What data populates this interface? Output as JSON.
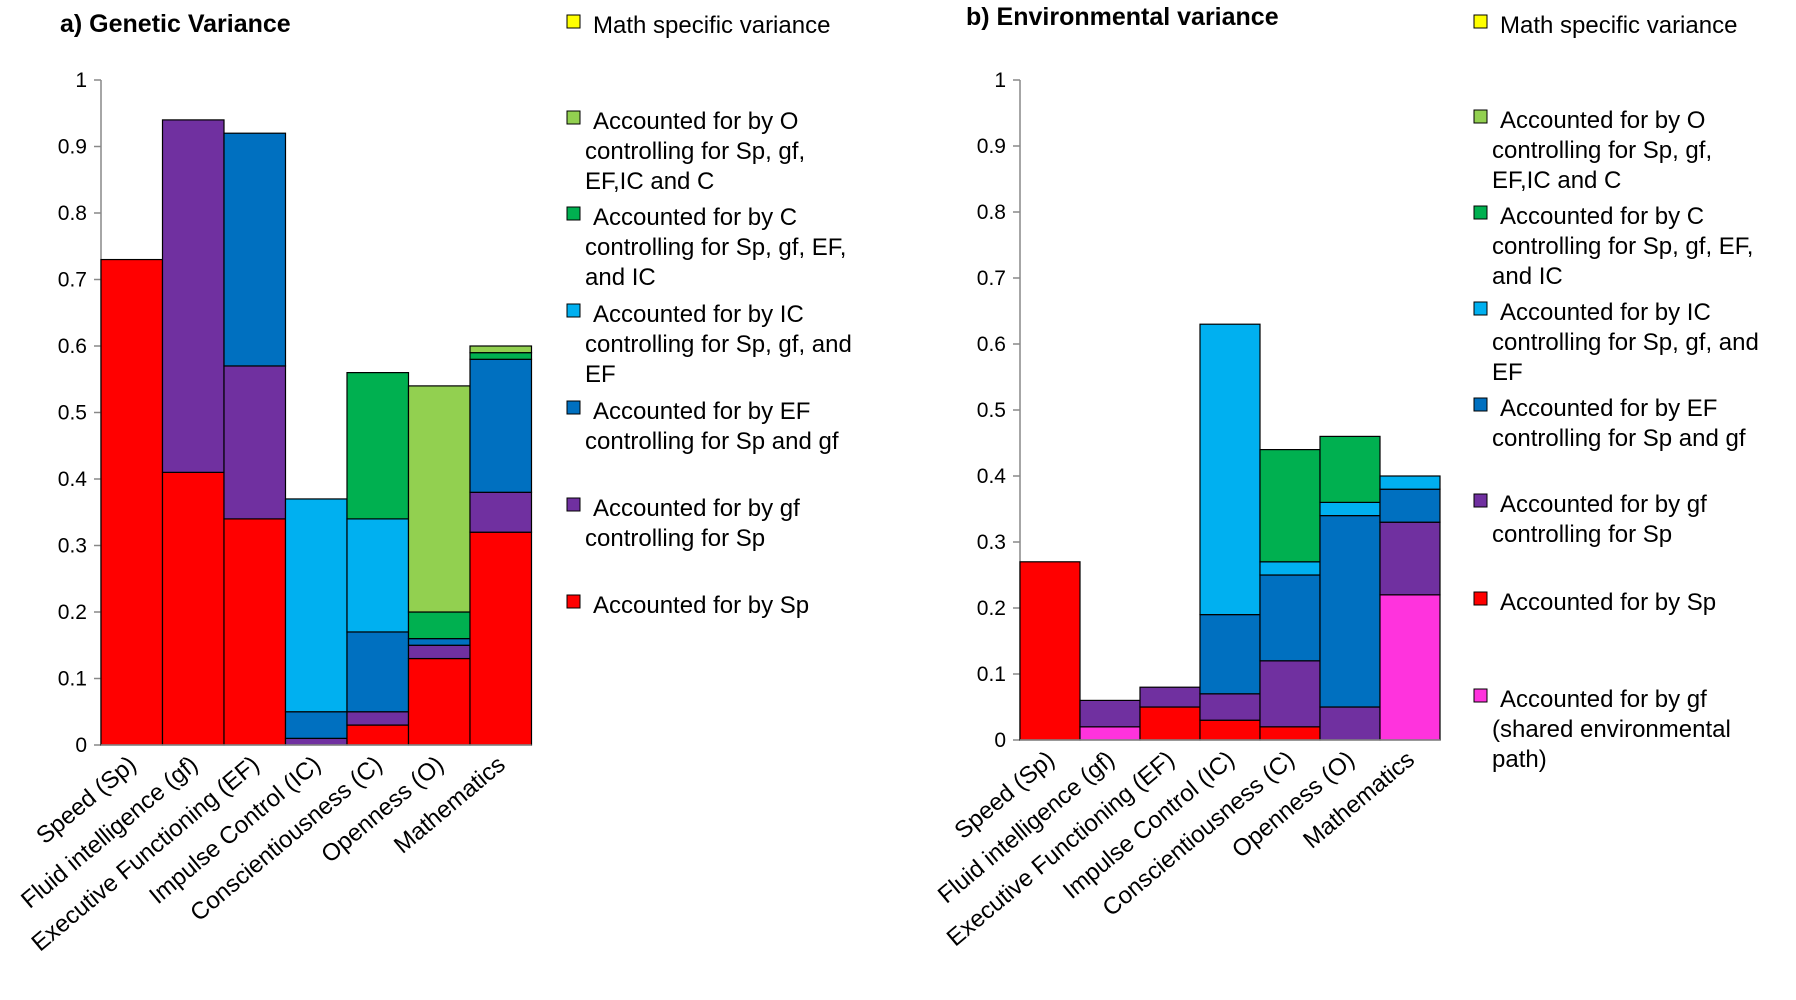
{
  "chart_data": [
    {
      "type": "bar",
      "stacked": true,
      "title": "a) Genetic Variance",
      "ylim": [
        0,
        1
      ],
      "yticks": [
        "0",
        "0.1",
        "0.2",
        "0.3",
        "0.4",
        "0.5",
        "0.6",
        "0.7",
        "0.8",
        "0.9",
        "1"
      ],
      "categories": [
        "Speed (Sp)",
        "Fluid intelligence (gf)",
        "Executive Functioning (EF)",
        "Impulse Control (IC)",
        "Conscientiousness (C)",
        "Openness (O)",
        "Mathematics"
      ],
      "series": [
        {
          "key": "sp",
          "name": "Accounted for by Sp",
          "color": "#ff0000",
          "values": [
            0.73,
            0.41,
            0.34,
            0.0,
            0.03,
            0.13,
            0.32
          ]
        },
        {
          "key": "gf",
          "name": "Accounted for by gf controlling for Sp",
          "color": "#7030a0",
          "values": [
            0.0,
            0.53,
            0.23,
            0.01,
            0.02,
            0.02,
            0.06
          ]
        },
        {
          "key": "ef",
          "name": "Accounted for by EF controlling for Sp and gf",
          "color": "#0070c0",
          "values": [
            0.0,
            0.0,
            0.35,
            0.04,
            0.12,
            0.01,
            0.2
          ]
        },
        {
          "key": "ic",
          "name": "Accounted for by IC controlling  for Sp, gf, and EF",
          "color": "#00b0f0",
          "values": [
            0.0,
            0.0,
            0.0,
            0.32,
            0.17,
            0.0,
            0.0
          ]
        },
        {
          "key": "c",
          "name": "Accounted for by C controlling for Sp, gf, EF, and IC",
          "color": "#00b050",
          "values": [
            0.0,
            0.0,
            0.0,
            0.0,
            0.22,
            0.04,
            0.01
          ]
        },
        {
          "key": "o",
          "name": "Accounted for by O controlling  for Sp, gf, EF,IC and C",
          "color": "#92d050",
          "values": [
            0.0,
            0.0,
            0.0,
            0.0,
            0.0,
            0.34,
            0.01
          ]
        },
        {
          "key": "math",
          "name": "Math specific variance",
          "color": "#ffff00",
          "values": [
            0.0,
            0.0,
            0.0,
            0.0,
            0.0,
            0.0,
            0.0
          ]
        }
      ],
      "legend": [
        {
          "color": "#ffff00",
          "lines": [
            "Math specific variance"
          ]
        },
        {
          "color": "#92d050",
          "lines": [
            " Accounted for by O",
            "controlling  for Sp, gf,",
            "EF,IC and C"
          ]
        },
        {
          "color": "#00b050",
          "lines": [
            "Accounted for by C",
            "controlling for Sp, gf, EF,",
            "and IC"
          ]
        },
        {
          "color": "#00b0f0",
          "lines": [
            "Accounted for by IC",
            "controlling  for Sp, gf, and",
            "EF"
          ]
        },
        {
          "color": "#0070c0",
          "lines": [
            "Accounted for by EF",
            "controlling for Sp and gf"
          ]
        },
        {
          "color": "#7030a0",
          "lines": [
            "Accounted for by gf",
            "controlling for Sp"
          ]
        },
        {
          "color": "#ff0000",
          "lines": [
            "Accounted for by Sp"
          ]
        }
      ]
    },
    {
      "type": "bar",
      "stacked": true,
      "title": "b) Environmental variance",
      "ylim": [
        0,
        1
      ],
      "yticks": [
        "0",
        "0.1",
        "0.2",
        "0.3",
        "0.4",
        "0.5",
        "0.6",
        "0.7",
        "0.8",
        "0.9",
        "1"
      ],
      "categories": [
        "Speed (Sp)",
        "Fluid intelligence (gf)",
        "Executive Functioning (EF)",
        "Impulse Control (IC)",
        "Conscientiousness (C)",
        "Openness (O)",
        "Mathematics"
      ],
      "series": [
        {
          "key": "gfshared",
          "name": "Accounted for by gf (shared environmental path)",
          "color": "#ff33dd",
          "values": [
            0.0,
            0.02,
            0.0,
            0.0,
            0.0,
            0.0,
            0.22
          ]
        },
        {
          "key": "sp",
          "name": "Accounted for by Sp",
          "color": "#ff0000",
          "values": [
            0.27,
            0.0,
            0.05,
            0.03,
            0.02,
            0.0,
            0.0
          ]
        },
        {
          "key": "gf",
          "name": "Accounted for by gf controlling for Sp",
          "color": "#7030a0",
          "values": [
            0.0,
            0.04,
            0.03,
            0.04,
            0.1,
            0.05,
            0.11
          ]
        },
        {
          "key": "ef",
          "name": "Accounted for by EF controlling for Sp and gf",
          "color": "#0070c0",
          "values": [
            0.0,
            0.0,
            0.0,
            0.12,
            0.13,
            0.29,
            0.05
          ]
        },
        {
          "key": "ic",
          "name": "Accounted for by IC controlling  for Sp, gf, and EF",
          "color": "#00b0f0",
          "values": [
            0.0,
            0.0,
            0.0,
            0.44,
            0.02,
            0.02,
            0.02
          ]
        },
        {
          "key": "c",
          "name": "Accounted for by C controlling for Sp, gf, EF, and IC",
          "color": "#00b050",
          "values": [
            0.0,
            0.0,
            0.0,
            0.0,
            0.17,
            0.1,
            0.0
          ]
        },
        {
          "key": "o",
          "name": "Accounted for by O controlling  for Sp, gf, EF,IC and C",
          "color": "#92d050",
          "values": [
            0.0,
            0.0,
            0.0,
            0.0,
            0.0,
            0.0,
            0.0
          ]
        },
        {
          "key": "math",
          "name": "Math specific variance",
          "color": "#ffff00",
          "values": [
            0.0,
            0.0,
            0.0,
            0.0,
            0.0,
            0.0,
            0.0
          ]
        }
      ],
      "legend": [
        {
          "color": "#ffff00",
          "lines": [
            "Math specific variance"
          ]
        },
        {
          "color": "#92d050",
          "lines": [
            " Accounted for by O",
            "controlling  for Sp, gf,",
            "EF,IC and C"
          ]
        },
        {
          "color": "#00b050",
          "lines": [
            "Accounted for by C",
            "controlling for Sp, gf, EF,",
            "and IC"
          ]
        },
        {
          "color": "#00b0f0",
          "lines": [
            "Accounted for by IC",
            "controlling  for Sp, gf, and",
            "EF"
          ]
        },
        {
          "color": "#0070c0",
          "lines": [
            "Accounted for by EF",
            "controlling for Sp and gf"
          ]
        },
        {
          "color": "#7030a0",
          "lines": [
            "Accounted for by gf",
            "controlling for Sp"
          ]
        },
        {
          "color": "#ff0000",
          "lines": [
            "Accounted for by Sp"
          ]
        },
        {
          "color": "#ff33dd",
          "lines": [
            "Accounted for by gf",
            "(shared environmental",
            "path)"
          ]
        }
      ]
    }
  ]
}
